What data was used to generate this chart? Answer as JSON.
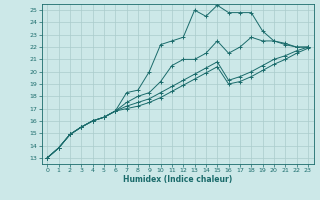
{
  "xlabel": "Humidex (Indice chaleur)",
  "bg_color": "#cce8e8",
  "grid_color": "#aacccc",
  "line_color": "#1a6b6b",
  "xlim": [
    -0.5,
    23.5
  ],
  "ylim": [
    12.5,
    25.5
  ],
  "xticks": [
    0,
    1,
    2,
    3,
    4,
    5,
    6,
    7,
    8,
    9,
    10,
    11,
    12,
    13,
    14,
    15,
    16,
    17,
    18,
    19,
    20,
    21,
    22,
    23
  ],
  "yticks": [
    13,
    14,
    15,
    16,
    17,
    18,
    19,
    20,
    21,
    22,
    23,
    24,
    25
  ],
  "line1_x": [
    0,
    1,
    2,
    3,
    4,
    5,
    6,
    7,
    8,
    9,
    10,
    11,
    12,
    13,
    14,
    15,
    16,
    17,
    18,
    19,
    20,
    21,
    22,
    23
  ],
  "line1_y": [
    13.0,
    13.8,
    14.9,
    15.5,
    16.0,
    16.3,
    16.8,
    18.3,
    18.5,
    20.0,
    22.2,
    22.5,
    22.8,
    25.0,
    24.5,
    25.4,
    24.8,
    24.8,
    24.8,
    23.3,
    22.5,
    22.2,
    22.0,
    22.0
  ],
  "line2_x": [
    0,
    1,
    2,
    3,
    4,
    5,
    6,
    7,
    8,
    9,
    10,
    11,
    12,
    13,
    14,
    15,
    16,
    17,
    18,
    19,
    20,
    21,
    22,
    23
  ],
  "line2_y": [
    13.0,
    13.8,
    14.9,
    15.5,
    16.0,
    16.3,
    16.8,
    17.5,
    18.0,
    18.3,
    19.2,
    20.5,
    21.0,
    21.0,
    21.5,
    22.5,
    21.5,
    22.0,
    22.8,
    22.5,
    22.5,
    22.3,
    22.0,
    22.0
  ],
  "line3_x": [
    0,
    1,
    2,
    3,
    4,
    5,
    6,
    7,
    8,
    9,
    10,
    11,
    12,
    13,
    14,
    15,
    16,
    17,
    18,
    19,
    20,
    21,
    22,
    23
  ],
  "line3_y": [
    13.0,
    13.8,
    14.9,
    15.5,
    16.0,
    16.3,
    16.8,
    17.2,
    17.5,
    17.8,
    18.3,
    18.8,
    19.3,
    19.8,
    20.3,
    20.8,
    19.3,
    19.6,
    20.0,
    20.5,
    21.0,
    21.3,
    21.7,
    22.0
  ],
  "line4_x": [
    0,
    1,
    2,
    3,
    4,
    5,
    6,
    7,
    8,
    9,
    10,
    11,
    12,
    13,
    14,
    15,
    16,
    17,
    18,
    19,
    20,
    21,
    22,
    23
  ],
  "line4_y": [
    13.0,
    13.8,
    14.9,
    15.5,
    16.0,
    16.3,
    16.8,
    17.0,
    17.2,
    17.5,
    17.9,
    18.4,
    18.9,
    19.4,
    19.9,
    20.4,
    19.0,
    19.2,
    19.6,
    20.1,
    20.6,
    21.0,
    21.5,
    21.9
  ]
}
